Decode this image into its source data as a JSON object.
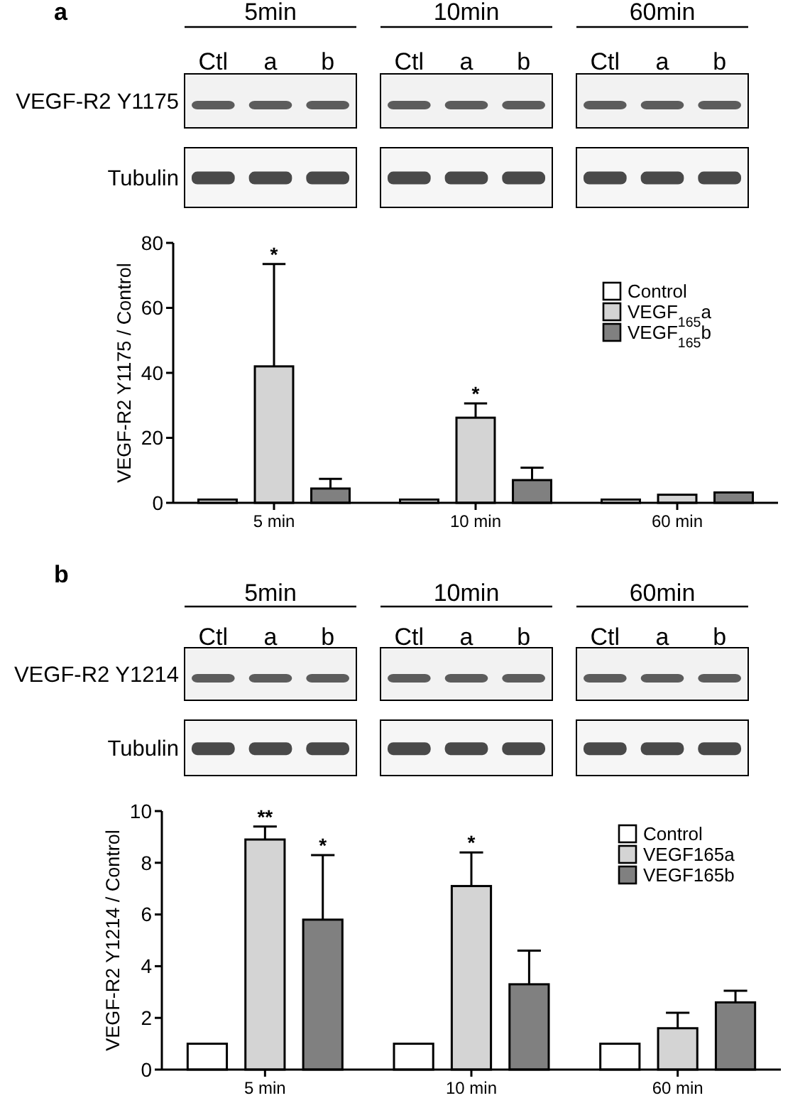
{
  "chart_data": [
    {
      "type": "other",
      "title": "a",
      "categories": [
        "5min",
        "10min",
        "60min"
      ],
      "y_categories": [
        "VEGF-R2 Y1175",
        "Tubulin"
      ],
      "annotations": [
        "Ctl",
        "a",
        "b",
        "Ctl",
        "a",
        "b",
        "Ctl",
        "a",
        "b"
      ]
    },
    {
      "type": "bar",
      "categories": [
        "5 min",
        "10 min",
        "60 min"
      ],
      "ylabel": "VEGF-R2 Y1175 / Control",
      "ylim": [
        0,
        80
      ],
      "yticks": [
        0,
        20,
        40,
        60,
        80
      ],
      "legend": "top right",
      "series": [
        {
          "name": "Control",
          "color": "#ffffff",
          "values": [
            1,
            1,
            1
          ]
        },
        {
          "name": "VEGF$_{165}$a",
          "color": "#d4d4d4",
          "values": [
            42,
            26.2,
            2.5
          ],
          "errors": [
            [
              42,
              73.5
            ],
            [
              26.2,
              30.6
            ],
            null
          ]
        },
        {
          "name": "VEGF$_{165}$b",
          "color": "#808080",
          "values": [
            4.4,
            7,
            3.2
          ],
          "errors": [
            [
              4.4,
              7.4
            ],
            [
              7,
              10.8
            ],
            null
          ]
        }
      ],
      "annotations": [
        {
          "text": "*",
          "x": "5 min",
          "y": 73.5
        },
        {
          "text": "*",
          "x": "10 min",
          "y": 30.6
        }
      ]
    },
    {
      "type": "other",
      "title": "b",
      "categories": [
        "5min",
        "10min",
        "60min"
      ],
      "y_categories": [
        "VEGF-R2 Y1214",
        "Tubulin"
      ],
      "annotations": [
        "Ctl",
        "a",
        "b",
        "Ctl",
        "a",
        "b",
        "Ctl",
        "a",
        "b"
      ]
    },
    {
      "type": "bar",
      "categories": [
        "5 min",
        "10 min",
        "60 min"
      ],
      "ylabel": "VEGF-R2 Y1214 / Control",
      "ylim": [
        0,
        10
      ],
      "yticks": [
        0,
        2,
        4,
        6,
        8,
        10
      ],
      "legend": "top right",
      "series": [
        {
          "name": "Control",
          "color": "#ffffff",
          "values": [
            1,
            1,
            1
          ]
        },
        {
          "name": "VEGF165a",
          "color": "#d4d4d4",
          "values": [
            8.9,
            7.1,
            1.6
          ],
          "errors": [
            [
              8.9,
              9.4
            ],
            [
              7.1,
              8.4
            ],
            [
              1.6,
              2.2
            ]
          ]
        },
        {
          "name": "VEGF165b",
          "color": "#808080",
          "values": [
            5.8,
            3.3,
            2.6
          ],
          "errors": [
            [
              5.8,
              8.3
            ],
            [
              3.3,
              4.6
            ],
            [
              2.6,
              3.05
            ]
          ]
        }
      ],
      "annotations": [
        {
          "text": "**",
          "x": "5 min",
          "y": 9.4
        },
        "*",
        {
          "text": "*",
          "x": "10 min",
          "y": 8.4
        }
      ]
    }
  ]
}
